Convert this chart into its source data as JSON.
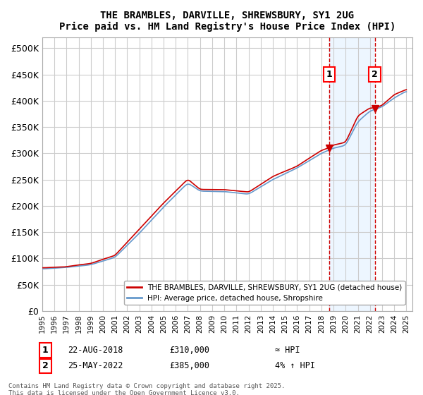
{
  "title": "THE BRAMBLES, DARVILLE, SHREWSBURY, SY1 2UG",
  "subtitle": "Price paid vs. HM Land Registry's House Price Index (HPI)",
  "ylabel_ticks": [
    "£0",
    "£50K",
    "£100K",
    "£150K",
    "£200K",
    "£250K",
    "£300K",
    "£350K",
    "£400K",
    "£450K",
    "£500K"
  ],
  "ytick_values": [
    0,
    50000,
    100000,
    150000,
    200000,
    250000,
    300000,
    350000,
    400000,
    450000,
    500000
  ],
  "xlim": [
    1995,
    2025.5
  ],
  "ylim": [
    0,
    520000
  ],
  "sale1_year": 2018.646,
  "sale1_price": 310000,
  "sale1_label": "22-AUG-2018",
  "sale1_amount": "£310,000",
  "sale1_hpi": "≈ HPI",
  "sale2_year": 2022.396,
  "sale2_price": 385000,
  "sale2_label": "25-MAY-2022",
  "sale2_amount": "£385,000",
  "sale2_hpi": "4% ↑ HPI",
  "legend_line1": "THE BRAMBLES, DARVILLE, SHREWSBURY, SY1 2UG (detached house)",
  "legend_line2": "HPI: Average price, detached house, Shropshire",
  "footer1": "Contains HM Land Registry data © Crown copyright and database right 2025.",
  "footer2": "This data is licensed under the Open Government Licence v3.0.",
  "red_color": "#cc0000",
  "blue_color": "#6699cc",
  "blue_fill": "#ddeeff",
  "background_color": "#ffffff",
  "grid_color": "#cccccc"
}
